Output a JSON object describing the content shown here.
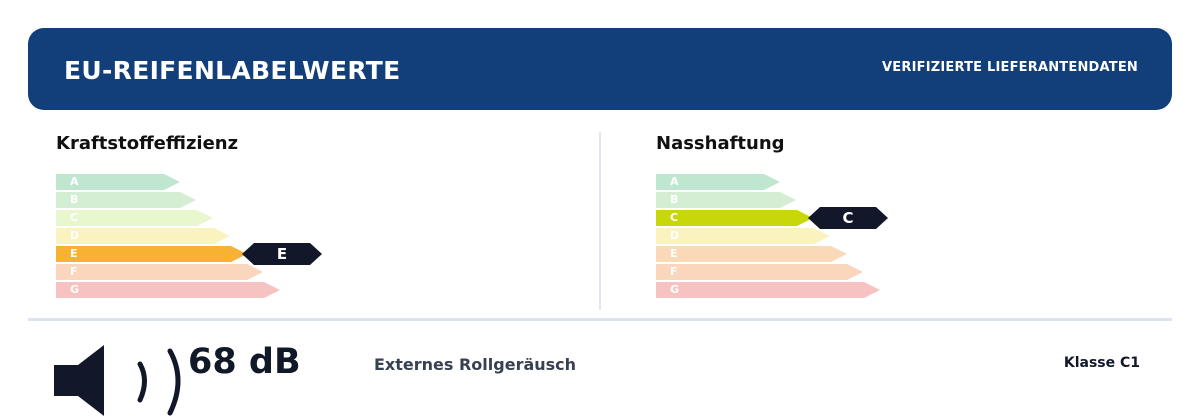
{
  "header": {
    "title": "EU-REIFENLABELWERTE",
    "badge": "VERIFIZIERTE LIEFERANTENDATEN",
    "background": "#123e7a"
  },
  "fuel": {
    "title": "Kraftstoffeffizienz",
    "rating": "E",
    "classes": [
      "A",
      "B",
      "C",
      "D",
      "E",
      "F",
      "G"
    ],
    "inactive_colors": [
      "#bfe6cf",
      "#d3eed2",
      "#e8f7cd",
      "#fbf3bf",
      "#fad9b8",
      "#fad6bd",
      "#f7c2c2"
    ],
    "active_color": "#f8b233"
  },
  "wet_grip": {
    "title": "Nasshaftung",
    "rating": "C",
    "classes": [
      "A",
      "B",
      "C",
      "D",
      "E",
      "F",
      "G"
    ],
    "inactive_colors": [
      "#bfe6cf",
      "#d3eed2",
      "#e8f7cd",
      "#fbf3bf",
      "#fad9b8",
      "#fad6bd",
      "#f7c2c2"
    ],
    "active_color": "#c7d70a"
  },
  "noise": {
    "value": "68 dB",
    "label": "Externes Rollgeräusch",
    "class": "Klasse C1",
    "icon": "speaker-sound-icon"
  }
}
